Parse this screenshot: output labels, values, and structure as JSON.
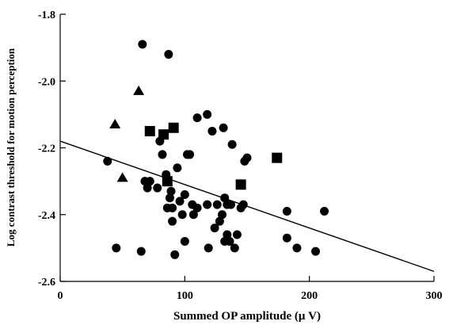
{
  "chart_data": {
    "type": "scatter",
    "title": "",
    "xlabel": "Summed OP amplitude (μ V)",
    "ylabel": "Log contrast threshold for motion perception",
    "xlim": [
      0,
      300
    ],
    "ylim": [
      -2.6,
      -1.8
    ],
    "y_reversed": true,
    "x_ticks": [
      0,
      100,
      200,
      300
    ],
    "x_tick_labels": [
      "0",
      "100",
      "200",
      "300"
    ],
    "y_ticks": [
      -1.8,
      -2.0,
      -2.2,
      -2.4,
      -2.6
    ],
    "y_tick_labels": [
      "-1.8",
      "-2.0",
      "-2.2",
      "-2.4",
      "-2.6"
    ],
    "grid": false,
    "legend": "none",
    "series": [
      {
        "marker": "circle",
        "points": [
          [
            66,
            -1.89
          ],
          [
            87,
            -1.92
          ],
          [
            38,
            -2.24
          ],
          [
            45,
            -2.5
          ],
          [
            65,
            -2.51
          ],
          [
            68,
            -2.3
          ],
          [
            70,
            -2.32
          ],
          [
            72,
            -2.3
          ],
          [
            78,
            -2.32
          ],
          [
            80,
            -2.18
          ],
          [
            82,
            -2.22
          ],
          [
            85,
            -2.28
          ],
          [
            86,
            -2.38
          ],
          [
            88,
            -2.35
          ],
          [
            89,
            -2.33
          ],
          [
            90,
            -2.38
          ],
          [
            90,
            -2.42
          ],
          [
            92,
            -2.52
          ],
          [
            94,
            -2.26
          ],
          [
            96,
            -2.36
          ],
          [
            98,
            -2.4
          ],
          [
            100,
            -2.34
          ],
          [
            100,
            -2.48
          ],
          [
            102,
            -2.22
          ],
          [
            104,
            -2.22
          ],
          [
            106,
            -2.37
          ],
          [
            107,
            -2.4
          ],
          [
            110,
            -2.38
          ],
          [
            110,
            -2.11
          ],
          [
            118,
            -2.1
          ],
          [
            118,
            -2.37
          ],
          [
            119,
            -2.5
          ],
          [
            122,
            -2.15
          ],
          [
            124,
            -2.44
          ],
          [
            126,
            -2.37
          ],
          [
            128,
            -2.42
          ],
          [
            130,
            -2.4
          ],
          [
            131,
            -2.14
          ],
          [
            132,
            -2.48
          ],
          [
            132,
            -2.35
          ],
          [
            134,
            -2.37
          ],
          [
            134,
            -2.46
          ],
          [
            136,
            -2.48
          ],
          [
            137,
            -2.37
          ],
          [
            138,
            -2.19
          ],
          [
            140,
            -2.5
          ],
          [
            142,
            -2.46
          ],
          [
            145,
            -2.38
          ],
          [
            147,
            -2.37
          ],
          [
            148,
            -2.24
          ],
          [
            150,
            -2.23
          ],
          [
            182,
            -2.39
          ],
          [
            182,
            -2.47
          ],
          [
            190,
            -2.5
          ],
          [
            205,
            -2.51
          ],
          [
            212,
            -2.39
          ]
        ]
      },
      {
        "marker": "square",
        "points": [
          [
            72,
            -2.15
          ],
          [
            83,
            -2.16
          ],
          [
            91,
            -2.14
          ],
          [
            86,
            -2.3
          ],
          [
            145,
            -2.31
          ],
          [
            174,
            -2.23
          ]
        ]
      },
      {
        "marker": "triangle",
        "points": [
          [
            44,
            -2.13
          ],
          [
            63,
            -2.03
          ],
          [
            50,
            -2.29
          ]
        ]
      }
    ],
    "regression_line": {
      "x": [
        0,
        300
      ],
      "y": [
        -2.18,
        -2.57
      ]
    }
  }
}
